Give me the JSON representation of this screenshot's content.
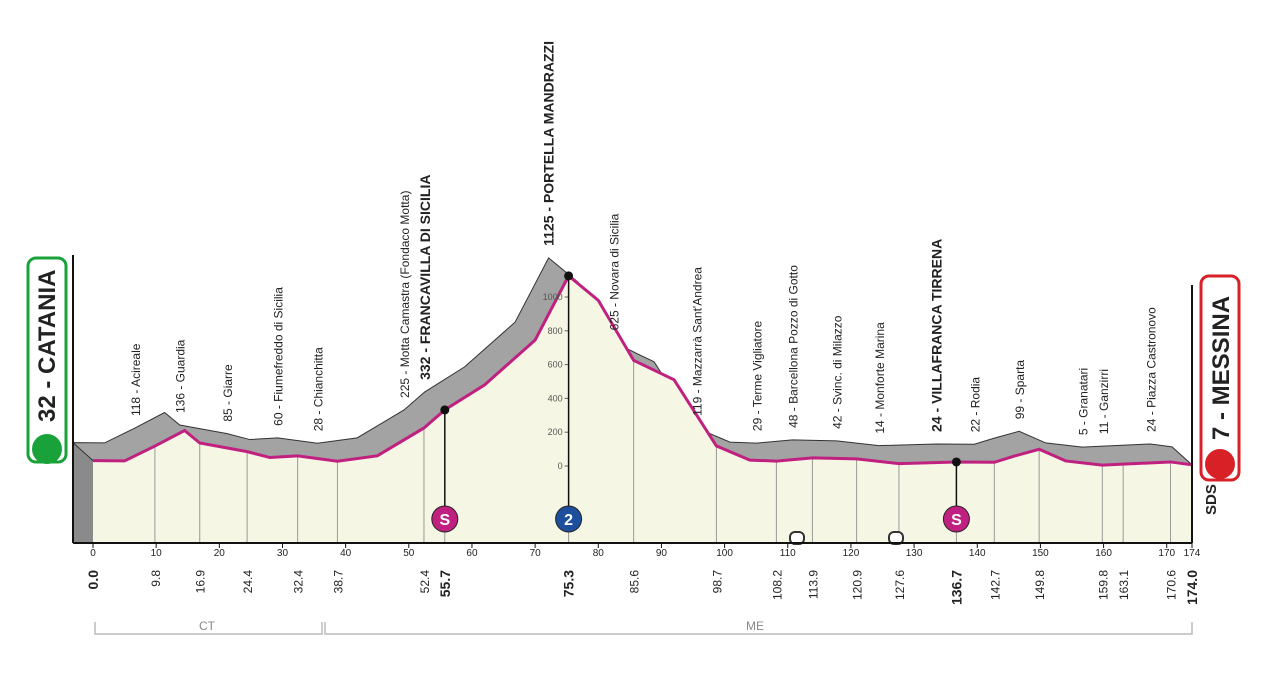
{
  "chart_data": {
    "type": "profile",
    "start": "32 - CATANIA",
    "finish": "7 - MESSINA",
    "logo": "SDS",
    "start_km": {
      "value": 0,
      "label": "0.0"
    },
    "finish_km": {
      "value": 174,
      "label": "174.0"
    },
    "points": [
      {
        "name": "118 - Acireale",
        "km": 9.8
      },
      {
        "name": "136 - Guardia",
        "km": 16.9
      },
      {
        "name": "85 - Giarre",
        "km": 24.4
      },
      {
        "name": "60 - Fiumefreddo di Sicilia",
        "km": 32.4
      },
      {
        "name": "28 - Chianchitta",
        "km": 38.7
      },
      {
        "name": "225 - Motta Camastra (Fondaco Motta)",
        "km": 52.4
      },
      {
        "name": "332 - FRANCAVILLA DI SICILIA",
        "km": 55.7,
        "bold": true
      },
      {
        "name": "1125 - PORTELLA MANDRAZZI",
        "km": 75.3,
        "bold": true
      },
      {
        "name": "625 - Novara di Sicilia",
        "km": 85.6
      },
      {
        "name": "119 - Mazzarrà  Sant'Andrea",
        "km": 98.7
      },
      {
        "name": "29 - Terme Vigliatore",
        "km": 108.2
      },
      {
        "name": "48 - Barcellona Pozzo di Gotto",
        "km": 113.9
      },
      {
        "name": "42 - Svinc. di Milazzo",
        "km": 120.9
      },
      {
        "name": "14 - Monforte Marina",
        "km": 127.6
      },
      {
        "name": "24 - VILLAFRANCA TIRRENA",
        "km": 136.7,
        "bold": true
      },
      {
        "name": "22 - Rodia",
        "km": 142.7
      },
      {
        "name": "99 - Sparta",
        "km": 149.8
      },
      {
        "name": "5 - Granatari",
        "km": 159.8
      },
      {
        "name": "11 - Ganzirri",
        "km": 163.1
      },
      {
        "name": "24 - Piazza Castronovo",
        "km": 170.6
      }
    ],
    "profile": {
      "x": [
        0,
        5,
        9.8,
        14.5,
        16.9,
        24.4,
        28,
        32.4,
        38.7,
        45,
        52.4,
        55.7,
        62,
        70,
        75.3,
        80,
        85.6,
        92,
        98.7,
        104,
        108.2,
        113.9,
        120.9,
        127.6,
        136.7,
        142.7,
        146,
        149.8,
        154,
        159.8,
        163.1,
        170.6,
        174
      ],
      "values": [
        32,
        30,
        118,
        210,
        136,
        85,
        50,
        60,
        28,
        60,
        225,
        332,
        480,
        745,
        1125,
        980,
        625,
        510,
        119,
        35,
        29,
        48,
        42,
        14,
        24,
        22,
        60,
        99,
        30,
        5,
        11,
        24,
        7
      ]
    },
    "sprints": [
      {
        "label": "S",
        "km": 55.7
      },
      {
        "label": "S",
        "km": 136.7
      }
    ],
    "kom": {
      "label": "2",
      "km": 75.3
    },
    "regions": [
      "CT",
      "ME"
    ],
    "xlim": [
      0,
      174
    ],
    "xticks": [
      0,
      10,
      20,
      30,
      40,
      50,
      60,
      70,
      80,
      90,
      100,
      110,
      120,
      130,
      140,
      150,
      160,
      170,
      174
    ],
    "ylim": [
      0,
      1000
    ],
    "yticks": [
      0,
      200,
      400,
      600,
      800,
      1000
    ],
    "line_color": "#c0207f",
    "fill_color": "#f6f6e4",
    "shadow_color": "#a3a3a3"
  }
}
